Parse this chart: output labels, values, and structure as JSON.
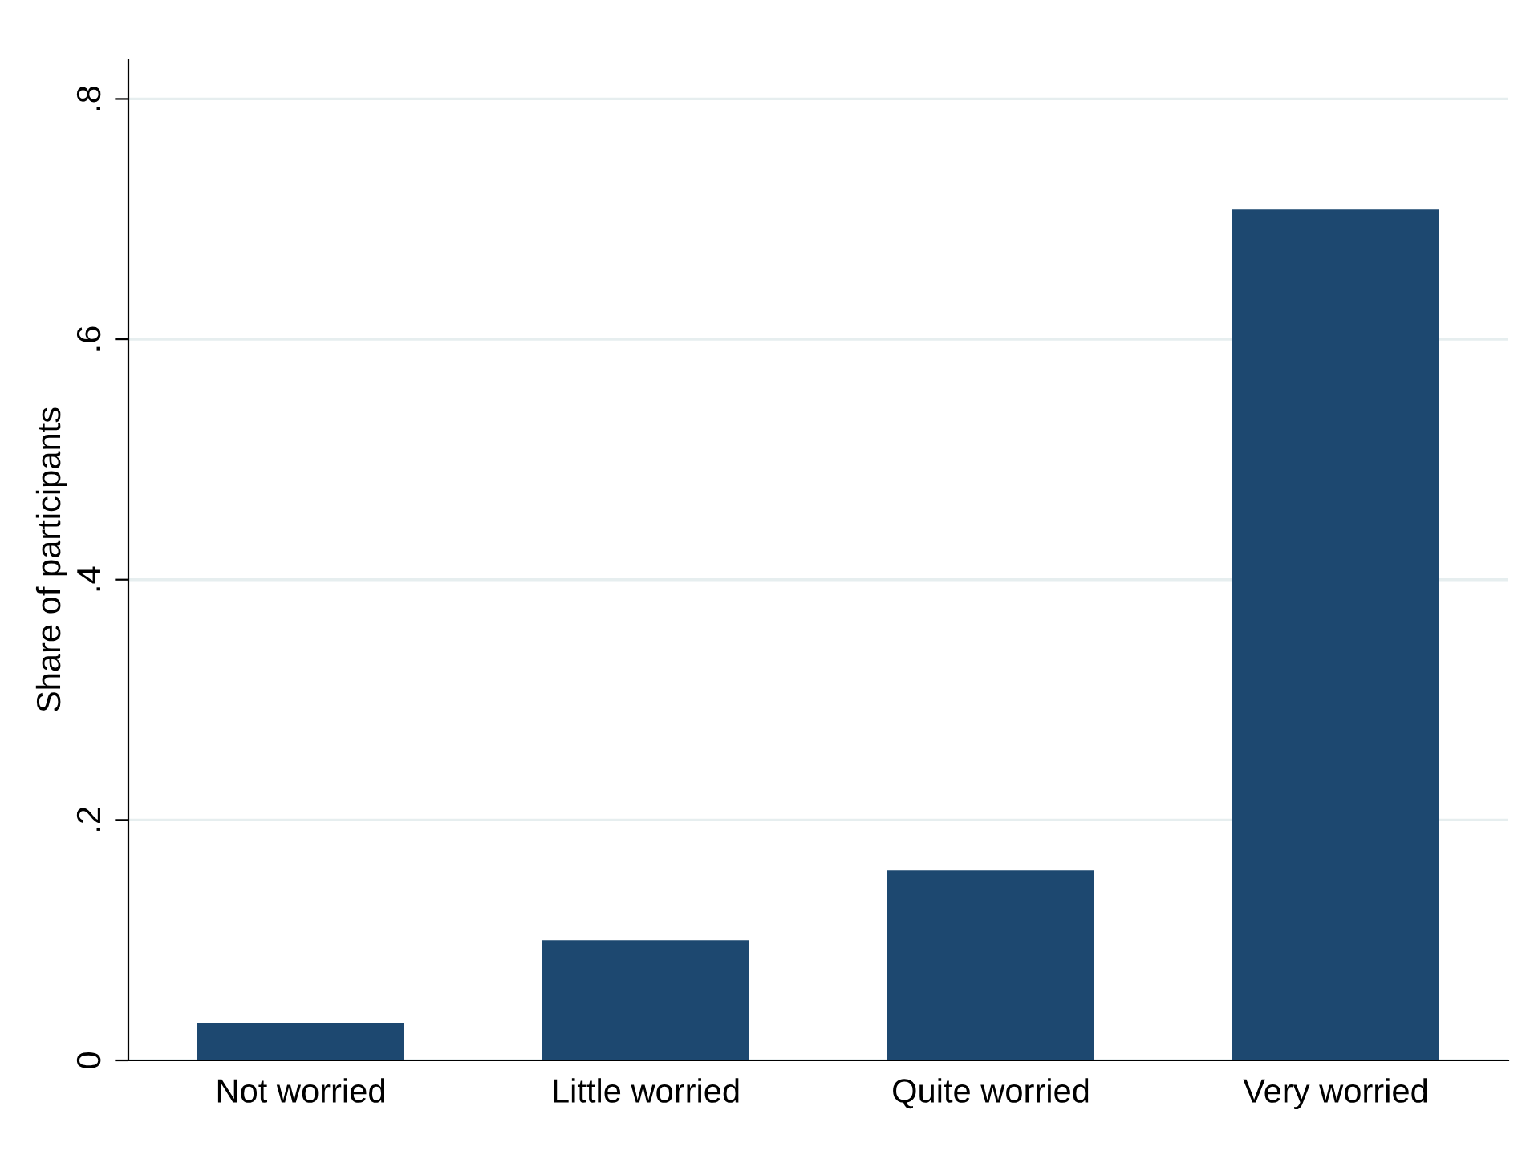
{
  "chart_data": {
    "type": "bar",
    "ylabel": "Share of participants",
    "categories": [
      "Not worried",
      "Little worried",
      "Quite worried",
      "Very worried"
    ],
    "values": [
      0.031,
      0.1,
      0.158,
      0.708
    ],
    "color": "#1d4870",
    "ylim": [
      0,
      0.833
    ],
    "yticks": [
      {
        "value": 0,
        "label": "0"
      },
      {
        "value": 0.2,
        "label": ".2"
      },
      {
        "value": 0.4,
        "label": ".4"
      },
      {
        "value": 0.6,
        "label": ".6"
      },
      {
        "value": 0.8,
        "label": ".8"
      }
    ],
    "grid": "y",
    "legend": false
  }
}
